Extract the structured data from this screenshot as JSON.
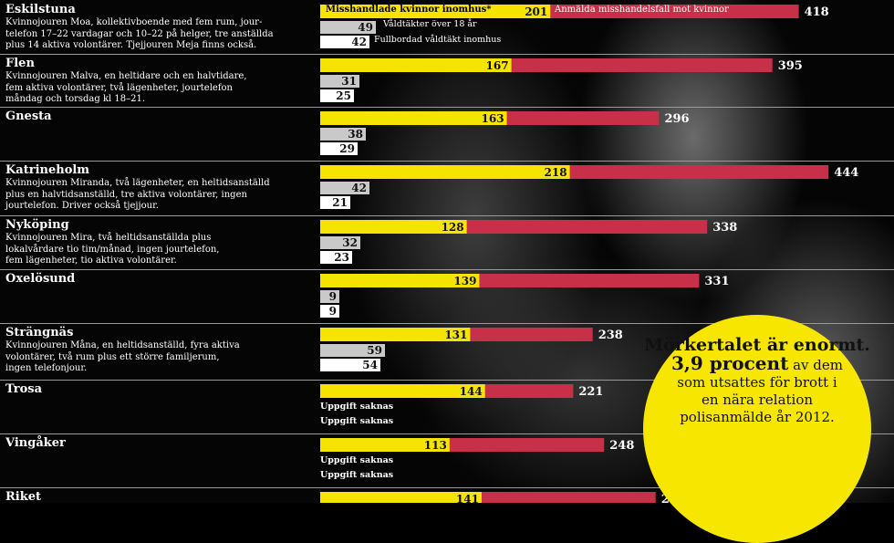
{
  "legend": {
    "yellow": "Misshandlade kvinnor inomhus*",
    "red": "Anmälda misshandelsfall mot kvinnor",
    "gray": "Våldtäkter över 18 år",
    "white": "Fullbordad våldtäkt inomhus"
  },
  "note": {
    "line1": "Mörkertalet är enormt.",
    "highlight": "3,9 procent",
    "line2": "av dem som utsattes för brott i en nära relation polisanmälde år 2012."
  },
  "colors": {
    "yellow": "#f5e400",
    "red": "#c8304a",
    "gray": "#c9c9c9",
    "white": "#ffffff"
  },
  "chart_data": {
    "type": "bar",
    "series": [
      {
        "name": "Misshandlade kvinnor inomhus*",
        "key": "yellow"
      },
      {
        "name": "Anmälda misshandelsfall mot kvinnor",
        "key": "red"
      },
      {
        "name": "Våldtäkter över 18 år",
        "key": "gray"
      },
      {
        "name": "Fullbordad våldtäkt inomhus",
        "key": "white"
      }
    ],
    "rows": [
      {
        "name": "Eskilstuna",
        "desc": "Kvinnojouren Moa, kollektivboende med fem rum, jour-\ntelefon 17–22 vardagar och 10–22 på helger, tre anställda\nplus 14 aktiva volontärer. Tjejjouren Meja finns också.",
        "yellow": 201,
        "red": 418,
        "gray": 49,
        "white": 42
      },
      {
        "name": "Flen",
        "desc": "Kvinnojouren Malva, en heltidare och en halvtidare,\nfem aktiva volontärer, två lägenheter, jourtelefon\nmåndag och torsdag kl 18–21.",
        "yellow": 167,
        "red": 395,
        "gray": 31,
        "white": 25
      },
      {
        "name": "Gnesta",
        "desc": "",
        "yellow": 163,
        "red": 296,
        "gray": 38,
        "white": 29
      },
      {
        "name": "Katrineholm",
        "desc": "Kvinnojouren Miranda, två lägenheter, en heltidsanställd\nplus en halvtidsanställd, tre aktiva volontärer, ingen\n jourtelefon. Driver också tjejjour.",
        "yellow": 218,
        "red": 444,
        "gray": 42,
        "white": 21
      },
      {
        "name": "Nyköping",
        "desc": "Kvinnojouren Mira, två heltidsanställda plus\nlokalvårdare tio tim/månad, ingen jourtelefon,\nfem lägenheter, tio aktiva volontärer.",
        "yellow": 128,
        "red": 338,
        "gray": 32,
        "white": 23
      },
      {
        "name": "Oxelösund",
        "desc": "",
        "yellow": 139,
        "red": 331,
        "gray": 9,
        "white": 9
      },
      {
        "name": "Strängnäs",
        "desc": "Kvinnojouren Måna, en heltidsanställd, fyra aktiva\nvolontärer, två rum plus ett större familjerum,\ningen telefonjour.",
        "yellow": 131,
        "red": 238,
        "gray": 59,
        "white": 54
      },
      {
        "name": "Trosa",
        "desc": "",
        "yellow": 144,
        "red": 221,
        "gray": null,
        "white": null,
        "missing": "Uppgift saknas"
      },
      {
        "name": "Vingåker",
        "desc": "",
        "yellow": 113,
        "red": 248,
        "gray": null,
        "white": null,
        "missing": "Uppgift saknas"
      },
      {
        "name": "Riket",
        "desc": "",
        "yellow": 141,
        "red": 293,
        "gray": null,
        "white": null
      }
    ]
  }
}
